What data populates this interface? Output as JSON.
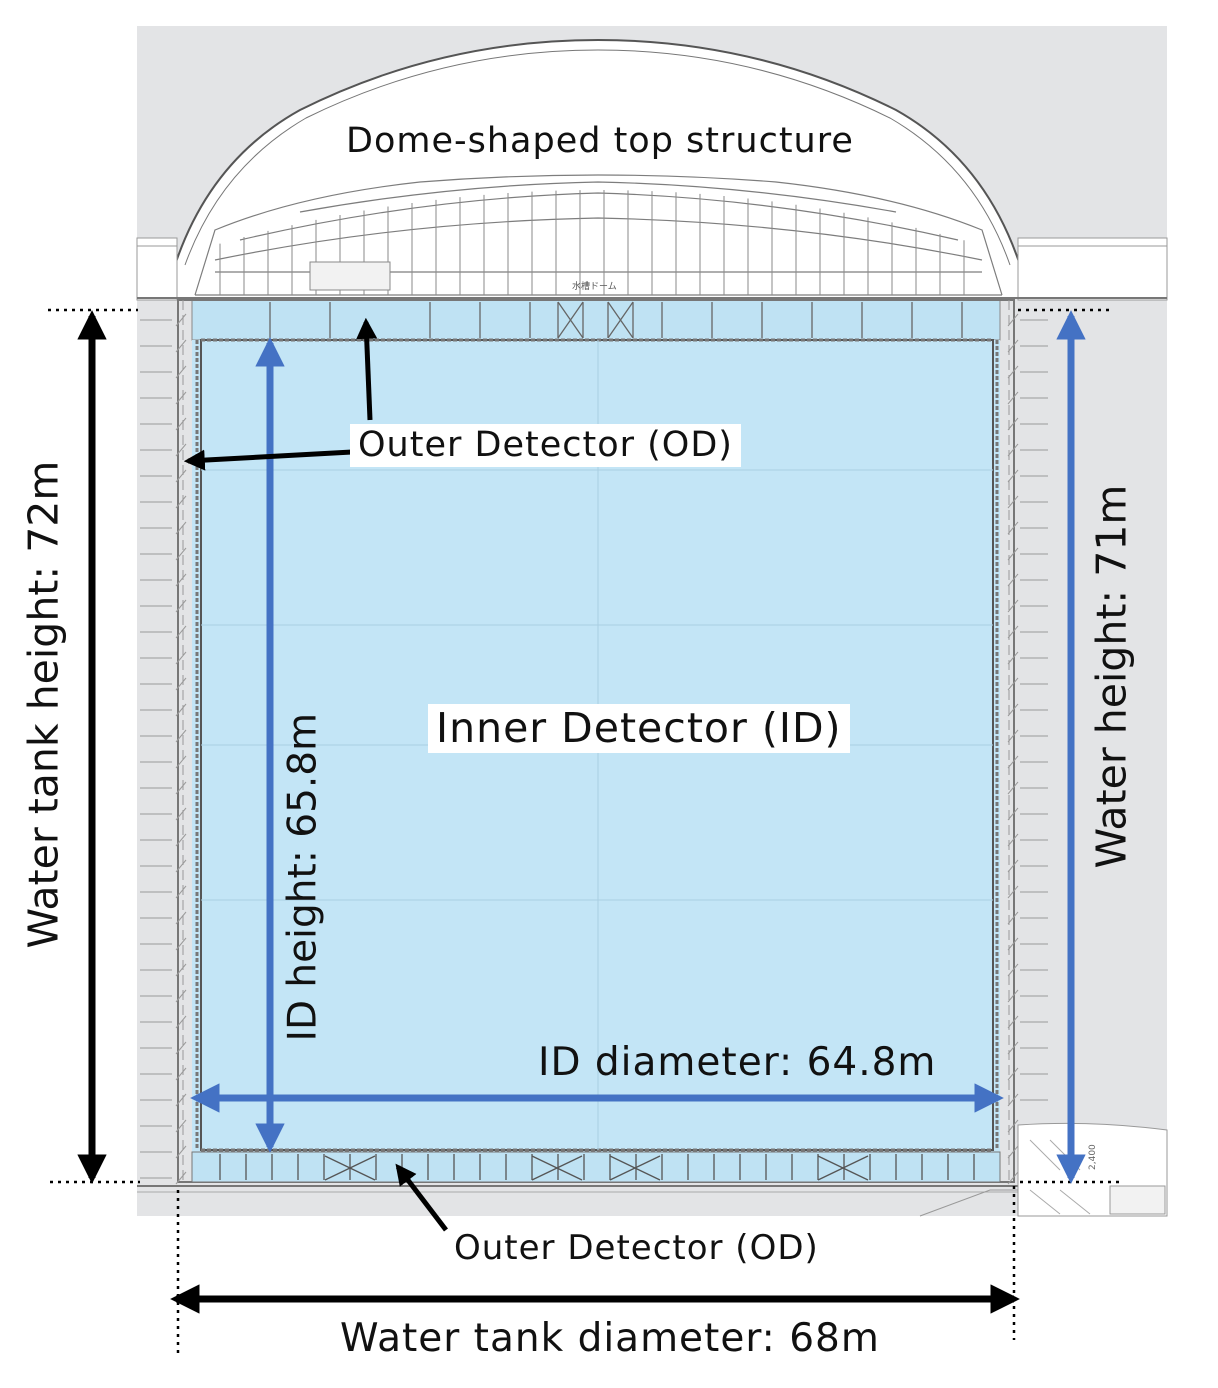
{
  "labels": {
    "dome": "Dome-shaped top structure",
    "od_top": "Outer Detector (OD)",
    "od_bottom": "Outer Detector (OD)",
    "inner": "Inner Detector (ID)",
    "id_height": "ID height: 65.8m",
    "id_diameter": "ID diameter: 64.8m",
    "tank_height": "Water tank height: 72m",
    "water_height": "Water height: 71m",
    "tank_diameter": "Water tank diameter: 68m",
    "small_jp": "水槽ドーム",
    "small_dim": "2,400"
  },
  "colors": {
    "water": "#c3e5f6",
    "blue_arrow": "#4472c4",
    "black_arrow": "#000000",
    "background_gray": "#e3e4e6",
    "line_gray": "#9a9a9a"
  }
}
